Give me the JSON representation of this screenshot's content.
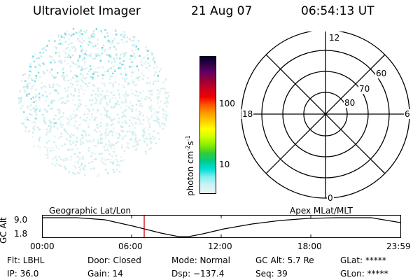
{
  "header": {
    "title": "Ultraviolet Imager",
    "date": "21 Aug 07",
    "time": "06:54:13 UT"
  },
  "colorbar": {
    "unit_label": "photon cm",
    "unit_exp1": "-2",
    "unit_s": "s",
    "unit_exp2": "-1",
    "ticks": [
      "100",
      "10"
    ],
    "colors": [
      "#000033",
      "#330044",
      "#660066",
      "#990033",
      "#cc0022",
      "#ee0000",
      "#ff5500",
      "#ff9900",
      "#ffcc00",
      "#ffff00",
      "#ccff00",
      "#88ee00",
      "#33cc33",
      "#00cc88",
      "#00dddd",
      "#88eeee",
      "#ccf4f4",
      "#e8f4f4"
    ]
  },
  "polar_plot": {
    "mlt_labels": {
      "top": "12",
      "left": "18",
      "right": "6",
      "bottom": "0"
    },
    "lat_labels": [
      "60",
      "70",
      "80"
    ]
  },
  "orbit_plot": {
    "y_axis_label": "GC Alt",
    "y_ticks": [
      "9.0",
      "1.8"
    ],
    "left_label": "Geographic Lat/Lon",
    "right_label": "Apex MLat/MLT",
    "x_ticks": [
      "00:00",
      "06:00",
      "12:00",
      "18:00",
      "23:59"
    ],
    "marker_color": "#cc0000"
  },
  "status": {
    "filter": "Flt: LBHL",
    "ip": "IP: 36.0",
    "door": "Door: Closed",
    "gain": "Gain: 14",
    "mode": "Mode: Normal",
    "dsp": "Dsp: −137.4",
    "gc_alt": "GC Alt: 5.7 Re",
    "seq": "Seq: 39",
    "glat": "GLat: *****",
    "glon": "GLon: *****"
  }
}
